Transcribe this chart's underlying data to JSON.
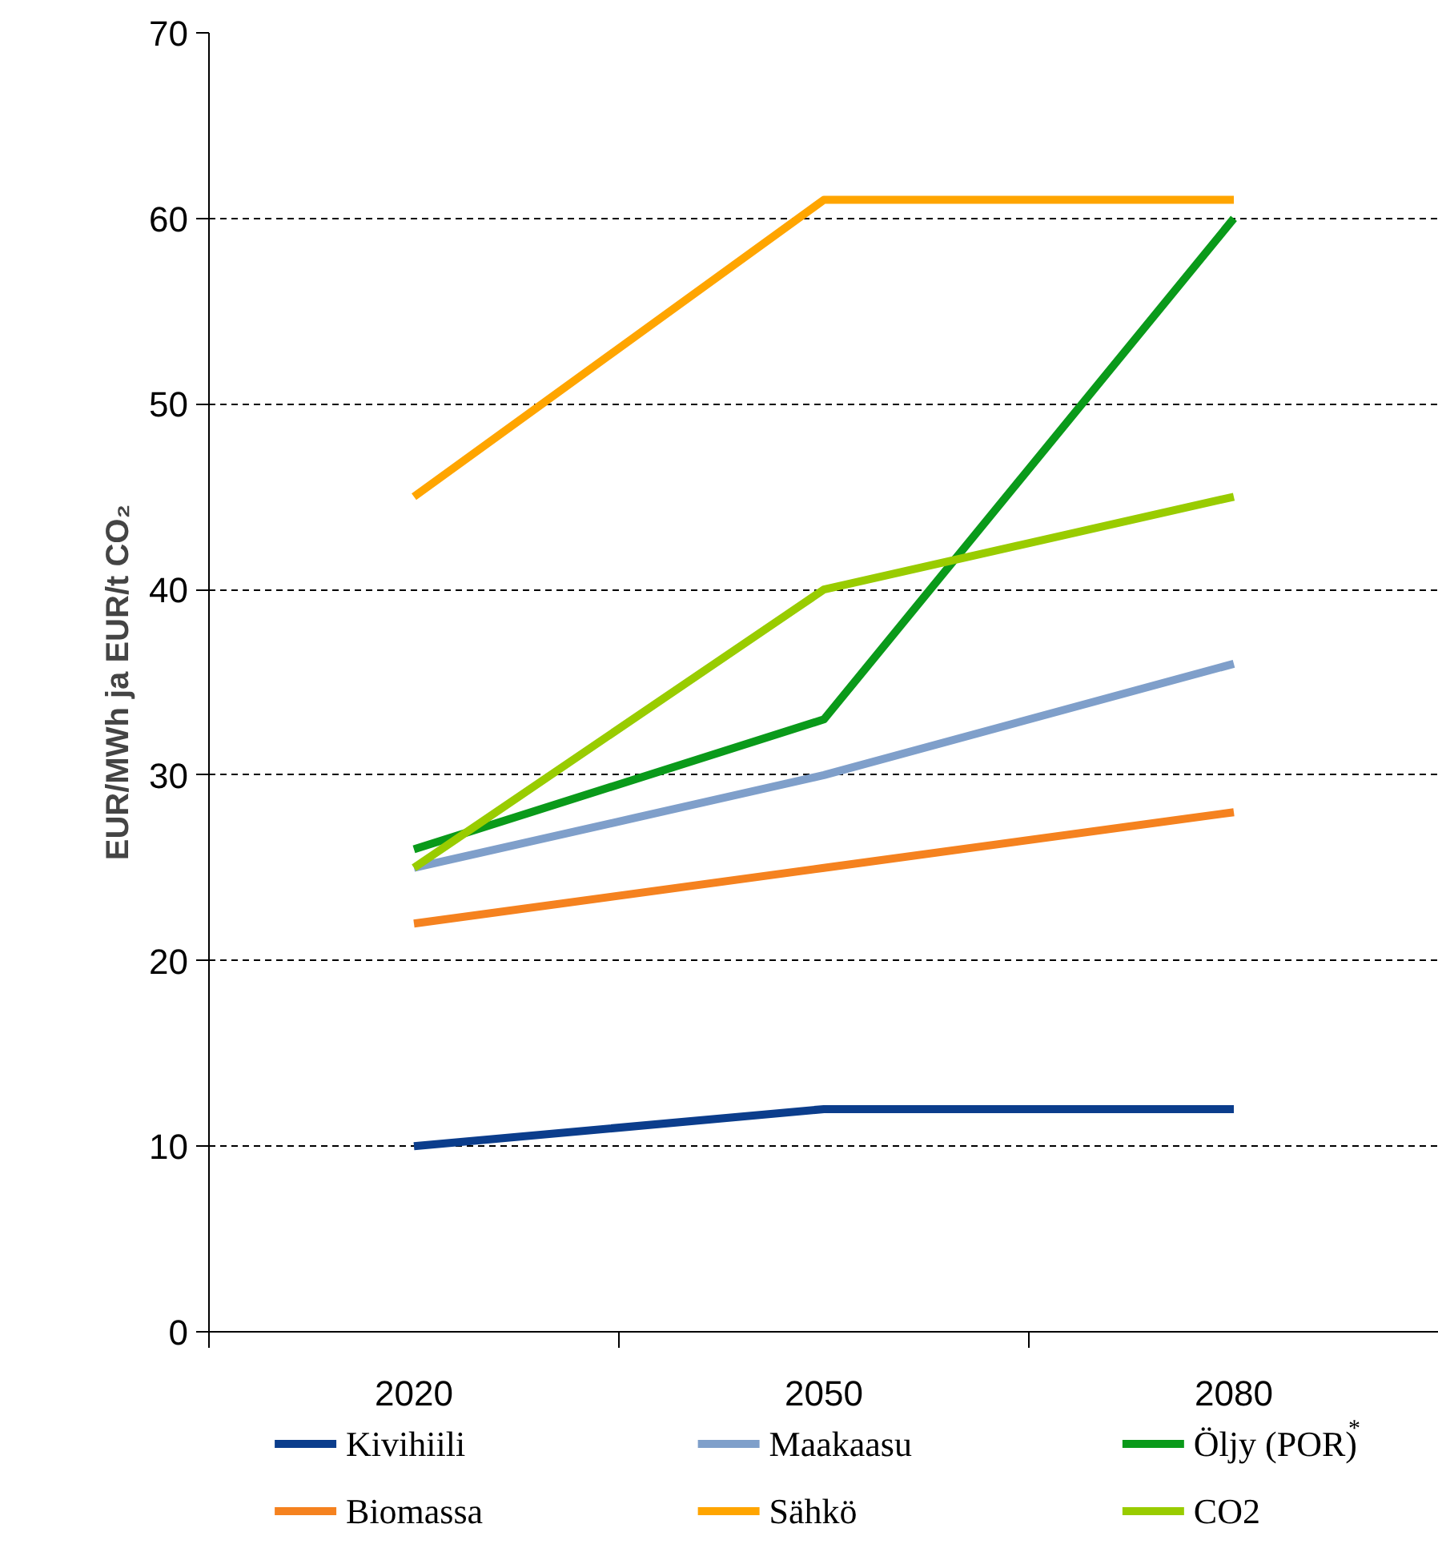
{
  "chart_data": {
    "type": "line",
    "ylabel": "EUR/MWh ja EUR/t CO₂",
    "categories": [
      "2020",
      "2050",
      "2080"
    ],
    "series": [
      {
        "name": "Kivihiili",
        "color": "#0b3d8c",
        "values": [
          10,
          12,
          12
        ]
      },
      {
        "name": "Maakaasu",
        "color": "#7f9fca",
        "values": [
          25,
          30,
          36
        ]
      },
      {
        "name": "Öljy (POR)$^{*}$",
        "color": "#0a9a1a",
        "values": [
          26,
          33,
          60
        ]
      },
      {
        "name": "Biomassa",
        "color": "#f5821f",
        "values": [
          22,
          25,
          28
        ]
      },
      {
        "name": "Sähkö",
        "color": "#ffa500",
        "values": [
          45,
          61,
          61
        ]
      },
      {
        "name": "CO2",
        "color": "#99cc00",
        "values": [
          25,
          40,
          45
        ]
      }
    ],
    "ylim": [
      0,
      70
    ],
    "yticks": [
      0,
      10,
      20,
      30,
      40,
      50,
      60,
      70
    ],
    "grid": "y",
    "legend": "bottom",
    "marker": "none",
    "line_style": "solid"
  }
}
